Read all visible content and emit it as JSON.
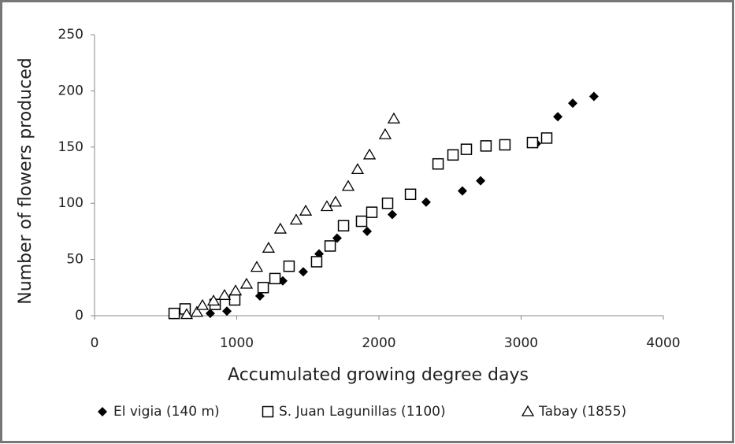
{
  "chart_data": {
    "type": "scatter",
    "xlabel": "Accumulated  growing degree days",
    "ylabel": "Number of flowers produced",
    "xlim": [
      0,
      4000
    ],
    "xticks": [
      0,
      1000,
      2000,
      3000,
      4000
    ],
    "ylim": [
      0,
      250
    ],
    "yticks": [
      0,
      50,
      100,
      150,
      200,
      250
    ],
    "legend": "bottom",
    "series": [
      {
        "name": "El vigia (140 m)",
        "marker": "diamond",
        "color": "#000000",
        "x": [
          814,
          931,
          1163,
          1324,
          1468,
          1579,
          1706,
          1917,
          2094,
          2332,
          2587,
          2715,
          3108,
          3258,
          3363,
          3512
        ],
        "values": [
          2,
          4,
          17.5,
          31,
          39,
          55,
          69,
          75,
          90,
          101,
          111,
          120,
          153,
          177,
          189,
          195
        ]
      },
      {
        "name": "S. Juan Lagunillas (1100)",
        "marker": "square",
        "color": "#000000",
        "x": [
          560,
          637,
          848,
          986,
          1186,
          1269,
          1368,
          1562,
          1657,
          1751,
          1878,
          1950,
          2061,
          2222,
          2416,
          2521,
          2615,
          2753,
          2886,
          3080,
          3180
        ],
        "values": [
          2,
          6,
          10,
          14,
          25,
          33,
          44,
          48,
          62,
          80,
          84,
          92,
          100,
          108,
          135,
          143,
          148,
          151,
          152,
          154,
          158
        ]
      },
      {
        "name": "Tabay (1855)",
        "marker": "triangle",
        "color": "#000000",
        "x": [
          648,
          720,
          759,
          837,
          914,
          992,
          1069,
          1141,
          1224,
          1307,
          1418,
          1485,
          1634,
          1695,
          1784,
          1850,
          1934,
          2044,
          2105
        ],
        "values": [
          1,
          3,
          9,
          13,
          18,
          22,
          28,
          43,
          60,
          77,
          85,
          93,
          97,
          101,
          115,
          130,
          143,
          161,
          175
        ]
      }
    ]
  }
}
